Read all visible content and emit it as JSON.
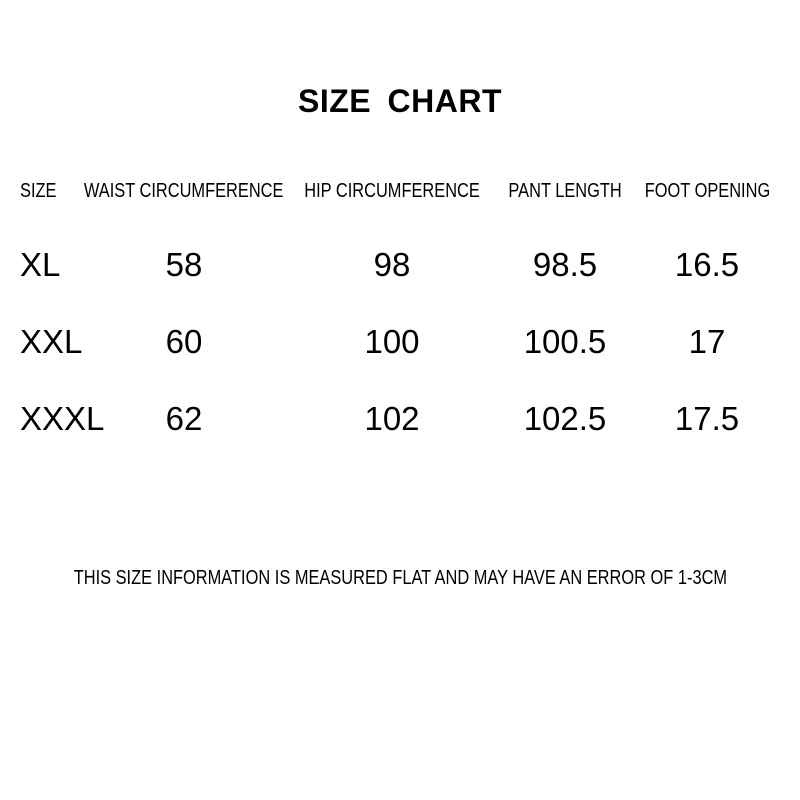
{
  "title": "SIZE CHART",
  "table": {
    "headers": [
      "SIZE",
      "WAIST CIRCUMFERENCE",
      "HIP CIRCUMFERENCE",
      "PANT LENGTH",
      "FOOT OPENING"
    ],
    "rows": [
      {
        "size": "XL",
        "waist": "58",
        "hip": "98",
        "pant_length": "98.5",
        "foot_opening": "16.5"
      },
      {
        "size": "XXL",
        "waist": "60",
        "hip": "100",
        "pant_length": "100.5",
        "foot_opening": "17"
      },
      {
        "size": "XXXL",
        "waist": "62",
        "hip": "102",
        "pant_length": "102.5",
        "foot_opening": "17.5"
      }
    ]
  },
  "note": "THIS SIZE INFORMATION IS MEASURED FLAT AND MAY HAVE AN ERROR OF 1-3CM",
  "colors": {
    "background": "#ffffff",
    "text": "#000000"
  }
}
